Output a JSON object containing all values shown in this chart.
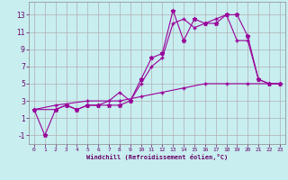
{
  "xlabel": "Windchill (Refroidissement éolien,°C)",
  "background_color": "#c8eef0",
  "grid_color": "#b0b0b0",
  "line_color": "#990099",
  "xlim": [
    -0.5,
    23.5
  ],
  "ylim": [
    -2,
    14.5
  ],
  "xticks": [
    0,
    1,
    2,
    3,
    4,
    5,
    6,
    7,
    8,
    9,
    10,
    11,
    12,
    13,
    14,
    15,
    16,
    17,
    18,
    19,
    20,
    21,
    22,
    23
  ],
  "yticks": [
    -1,
    1,
    3,
    5,
    7,
    9,
    11,
    13
  ],
  "series1_x": [
    0,
    1,
    2,
    3,
    4,
    5,
    6,
    7,
    8,
    9,
    10,
    11,
    12,
    13,
    14,
    15,
    16,
    17,
    18,
    19,
    20,
    21,
    22,
    23
  ],
  "series1_y": [
    2,
    -1,
    2,
    2.5,
    2,
    2.5,
    2.5,
    2.5,
    2.5,
    3,
    5.5,
    8,
    8.5,
    13.5,
    10,
    12.5,
    12,
    12,
    13,
    13,
    10.5,
    5.5,
    5,
    5
  ],
  "series2_x": [
    0,
    2,
    3,
    4,
    5,
    6,
    7,
    8,
    9,
    10,
    11,
    12,
    13,
    14,
    15,
    16,
    17,
    18,
    19,
    20,
    21,
    22,
    23
  ],
  "series2_y": [
    2,
    2,
    2.5,
    2,
    2.5,
    2.5,
    3,
    4,
    3,
    5,
    7,
    8,
    12,
    12.5,
    11.5,
    12,
    12.5,
    13,
    10,
    10,
    5.5,
    5,
    5
  ],
  "series3_x": [
    0,
    2,
    5,
    8,
    10,
    12,
    14,
    16,
    18,
    20,
    22,
    23
  ],
  "series3_y": [
    2,
    2.5,
    3,
    3,
    3.5,
    4,
    4.5,
    5,
    5,
    5,
    5,
    5
  ]
}
